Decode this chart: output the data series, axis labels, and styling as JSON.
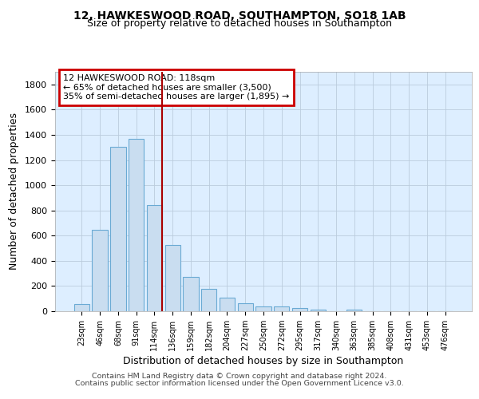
{
  "title1": "12, HAWKESWOOD ROAD, SOUTHAMPTON, SO18 1AB",
  "title2": "Size of property relative to detached houses in Southampton",
  "xlabel": "Distribution of detached houses by size in Southampton",
  "ylabel": "Number of detached properties",
  "categories": [
    "23sqm",
    "46sqm",
    "68sqm",
    "91sqm",
    "114sqm",
    "136sqm",
    "159sqm",
    "182sqm",
    "204sqm",
    "227sqm",
    "250sqm",
    "272sqm",
    "295sqm",
    "317sqm",
    "340sqm",
    "363sqm",
    "385sqm",
    "408sqm",
    "431sqm",
    "453sqm",
    "476sqm"
  ],
  "values": [
    55,
    645,
    1305,
    1370,
    840,
    525,
    275,
    175,
    105,
    65,
    35,
    35,
    25,
    15,
    0,
    10,
    0,
    0,
    0,
    0,
    0
  ],
  "bar_color": "#c9ddf0",
  "bar_edge_color": "#6aaad4",
  "vline_x_idx": 4.42,
  "vline_color": "#aa0000",
  "annotation_text": "12 HAWKESWOOD ROAD: 118sqm\n← 65% of detached houses are smaller (3,500)\n35% of semi-detached houses are larger (1,895) →",
  "annotation_box_color": "white",
  "annotation_box_edge": "#cc0000",
  "ylim": [
    0,
    1900
  ],
  "yticks": [
    0,
    200,
    400,
    600,
    800,
    1000,
    1200,
    1400,
    1600,
    1800
  ],
  "bg_color": "#ddeeff",
  "grid_color": "#bbccdd",
  "footer1": "Contains HM Land Registry data © Crown copyright and database right 2024.",
  "footer2": "Contains public sector information licensed under the Open Government Licence v3.0."
}
